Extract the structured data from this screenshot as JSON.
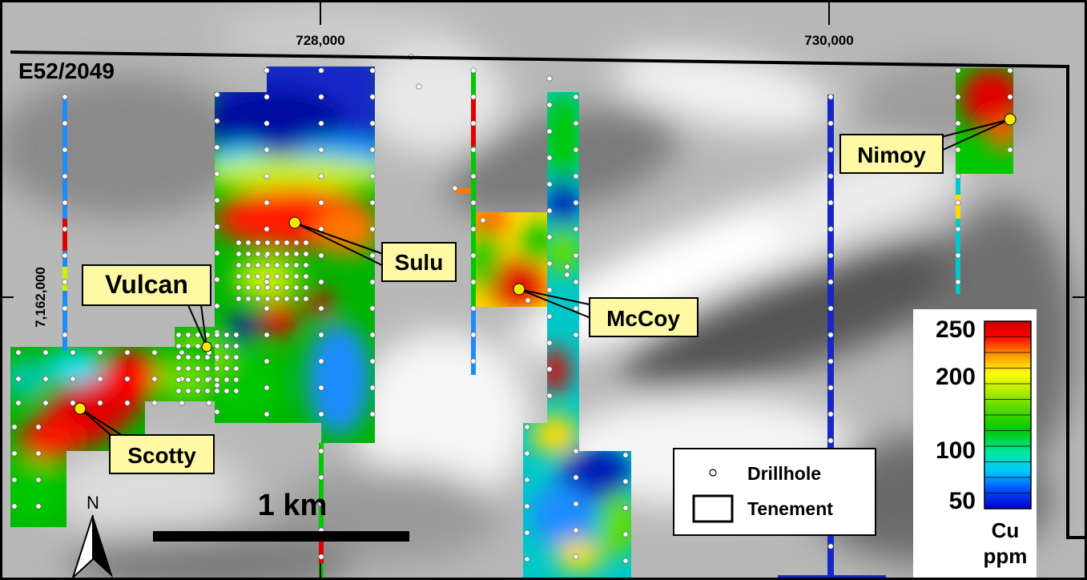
{
  "map": {
    "tenement_id": "E52/2049",
    "easting_labels": [
      "728,000",
      "730,000"
    ],
    "northing_label": "7,162,000"
  },
  "prospects": [
    {
      "name": "Vulcan"
    },
    {
      "name": "Sulu"
    },
    {
      "name": "McCoy"
    },
    {
      "name": "Scotty"
    },
    {
      "name": "Nimoy"
    }
  ],
  "scale_bar": {
    "label": "1 km"
  },
  "north_arrow": {
    "label": "N"
  },
  "legend": {
    "items": [
      {
        "label": "Drillhole",
        "symbol": "white-circle"
      },
      {
        "label": "Tenement",
        "symbol": "black-outline-rect"
      }
    ]
  },
  "colorbar": {
    "ticks": [
      "250",
      "200",
      "100",
      "50"
    ],
    "unit_line1": "Cu",
    "unit_line2": "ppm",
    "colors": [
      "#0000c8",
      "#0050ff",
      "#00c8ff",
      "#00e6a0",
      "#00c800",
      "#64dc00",
      "#c8f000",
      "#ffff00",
      "#ff9600",
      "#ff0000",
      "#c80000"
    ]
  },
  "colors": {
    "hot": "#e00000",
    "callout_fill": "#fff9a6",
    "prospect_marker": "#ffe600"
  }
}
